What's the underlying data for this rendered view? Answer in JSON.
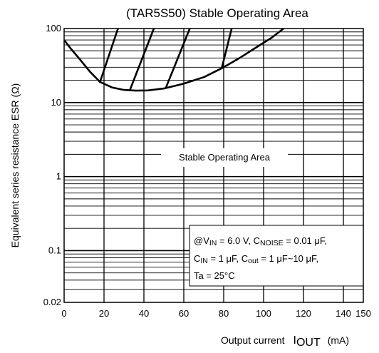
{
  "chart_data": {
    "type": "line",
    "title": "(TAR5S50) Stable Operating Area",
    "xlabel": "Output current",
    "xlabel_symbol": "I",
    "xlabel_symbol_sub": "OUT",
    "xlabel_unit": "(mA)",
    "ylabel": "Equivalent series resistance   ESR   (Ω)",
    "xlim": [
      0,
      150
    ],
    "ylim": [
      0.02,
      100
    ],
    "yscale": "log",
    "grid": true,
    "x_ticks": [
      0,
      20,
      40,
      60,
      80,
      100,
      120,
      140,
      150
    ],
    "x_tick_labels": [
      "0",
      "20",
      "40",
      "60",
      "80",
      "100",
      "120",
      "140",
      "150"
    ],
    "y_ticks": [
      0.02,
      0.1,
      1,
      10,
      100
    ],
    "y_tick_labels": [
      "0.02",
      "0.1",
      "1",
      "10",
      "100"
    ],
    "series": [
      {
        "values": [
          [
            0,
            70
          ],
          [
            3,
            55
          ],
          [
            8,
            38
          ],
          [
            13,
            26
          ],
          [
            18,
            19
          ],
          [
            24,
            16
          ],
          [
            30,
            14.8
          ],
          [
            36,
            14.5
          ],
          [
            42,
            14.6
          ],
          [
            50,
            15.5
          ],
          [
            60,
            18
          ],
          [
            70,
            22
          ],
          [
            80,
            30
          ],
          [
            88,
            40
          ],
          [
            96,
            55
          ],
          [
            104,
            75
          ],
          [
            110,
            100
          ]
        ]
      }
    ],
    "hatch_lines": [
      [
        [
          18,
          19
        ],
        [
          27,
          100
        ]
      ],
      [
        [
          33,
          14.8
        ],
        [
          45,
          100
        ]
      ],
      [
        [
          51,
          15.8
        ],
        [
          63,
          100
        ]
      ],
      [
        [
          79,
          29
        ],
        [
          84,
          100
        ]
      ]
    ],
    "annotations": {
      "region_label": "Stable Operating Area",
      "conditions": {
        "line1": {
          "p1": "@V",
          "s1": "IN",
          "p2": " = 6.0 V, C",
          "s2": "NOISE",
          "p3": " = 0.01 μF,"
        },
        "line2": {
          "p1": "C",
          "s1": "IN",
          "p2": " = 1 μF, C",
          "s2": "out",
          "p3": " = 1 μF~10 μF,"
        },
        "line3": {
          "p1": "Ta = 25°C"
        }
      }
    }
  }
}
